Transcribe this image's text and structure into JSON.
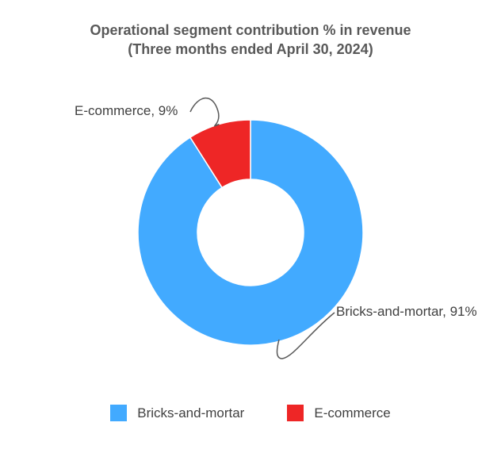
{
  "chart_data": {
    "type": "pie",
    "donut": true,
    "title": "Operational segment contribution % in revenue",
    "subtitle": "(Three months ended April 30, 2024)",
    "categories": [
      "Bricks-and-mortar",
      "E-commerce"
    ],
    "values": [
      91,
      9
    ],
    "unit": "%",
    "data_labels": [
      "Bricks-and-mortar, 91%",
      "E-commerce, 9%"
    ],
    "colors": [
      "#42aaff",
      "#ee2626"
    ],
    "legend": {
      "position": "bottom",
      "entries": [
        "Bricks-and-mortar",
        "E-commerce"
      ]
    }
  }
}
